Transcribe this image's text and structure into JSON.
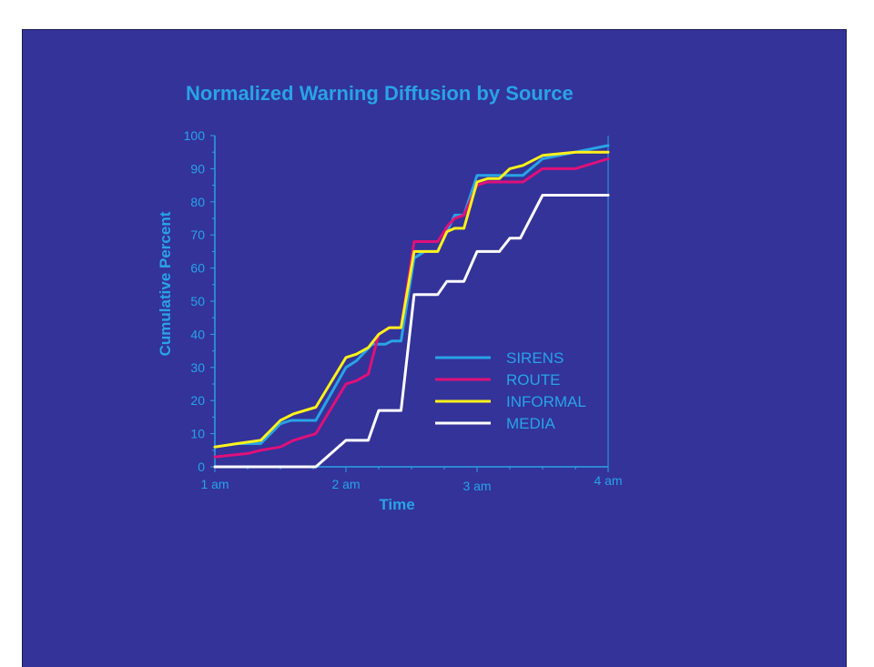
{
  "chart_data": {
    "type": "line",
    "title": "Normalized Warning Diffusion by Source",
    "xlabel": "Time",
    "ylabel": "Cumulative Percent",
    "xlim": [
      0,
      3
    ],
    "ylim": [
      0,
      100
    ],
    "x_ticks": [
      {
        "value": 0,
        "label": "1 am"
      },
      {
        "value": 1,
        "label": "2 am"
      },
      {
        "value": 2,
        "label": "3 am"
      },
      {
        "value": 3,
        "label": "4 am"
      }
    ],
    "y_ticks": [
      0,
      10,
      20,
      30,
      40,
      50,
      60,
      70,
      80,
      90,
      100
    ],
    "grid": false,
    "legend_position": "lower-right",
    "series": [
      {
        "name": "SIRENS",
        "color": "#29A3E6",
        "points": [
          [
            0,
            6
          ],
          [
            0.17,
            7
          ],
          [
            0.35,
            7
          ],
          [
            0.5,
            13
          ],
          [
            0.58,
            14
          ],
          [
            0.77,
            14
          ],
          [
            1.0,
            30
          ],
          [
            1.08,
            32
          ],
          [
            1.2,
            37
          ],
          [
            1.3,
            37
          ],
          [
            1.35,
            38
          ],
          [
            1.42,
            38
          ],
          [
            1.52,
            63
          ],
          [
            1.6,
            65
          ],
          [
            1.7,
            65
          ],
          [
            1.77,
            71
          ],
          [
            1.83,
            76
          ],
          [
            1.9,
            76
          ],
          [
            2.0,
            88
          ],
          [
            2.08,
            88
          ],
          [
            2.17,
            88
          ],
          [
            2.25,
            88
          ],
          [
            2.35,
            88
          ],
          [
            2.5,
            93
          ],
          [
            2.75,
            95
          ],
          [
            3.0,
            97
          ]
        ]
      },
      {
        "name": "ROUTE",
        "color": "#E0107A",
        "points": [
          [
            0,
            3
          ],
          [
            0.25,
            4
          ],
          [
            0.35,
            5
          ],
          [
            0.5,
            6
          ],
          [
            0.6,
            8
          ],
          [
            0.77,
            10
          ],
          [
            1.0,
            25
          ],
          [
            1.08,
            26
          ],
          [
            1.17,
            28
          ],
          [
            1.25,
            40
          ],
          [
            1.33,
            42
          ],
          [
            1.42,
            42
          ],
          [
            1.52,
            68
          ],
          [
            1.6,
            68
          ],
          [
            1.7,
            68
          ],
          [
            1.78,
            73
          ],
          [
            1.83,
            75
          ],
          [
            1.9,
            76
          ],
          [
            2.0,
            85
          ],
          [
            2.08,
            86
          ],
          [
            2.17,
            86
          ],
          [
            2.25,
            86
          ],
          [
            2.35,
            86
          ],
          [
            2.5,
            90
          ],
          [
            2.75,
            90
          ],
          [
            3.0,
            93
          ]
        ]
      },
      {
        "name": "INFORMAL",
        "color": "#FFF21A",
        "points": [
          [
            0,
            6
          ],
          [
            0.17,
            7
          ],
          [
            0.35,
            8
          ],
          [
            0.5,
            14
          ],
          [
            0.6,
            16
          ],
          [
            0.77,
            18
          ],
          [
            1.0,
            33
          ],
          [
            1.08,
            34
          ],
          [
            1.17,
            36
          ],
          [
            1.25,
            40
          ],
          [
            1.33,
            42
          ],
          [
            1.42,
            42
          ],
          [
            1.52,
            65
          ],
          [
            1.6,
            65
          ],
          [
            1.7,
            65
          ],
          [
            1.77,
            71
          ],
          [
            1.83,
            72
          ],
          [
            1.9,
            72
          ],
          [
            2.0,
            86
          ],
          [
            2.08,
            87
          ],
          [
            2.17,
            87
          ],
          [
            2.25,
            90
          ],
          [
            2.35,
            91
          ],
          [
            2.5,
            94
          ],
          [
            2.75,
            95
          ],
          [
            3.0,
            95
          ]
        ]
      },
      {
        "name": "MEDIA",
        "color": "#FFFFFF",
        "points": [
          [
            0,
            0
          ],
          [
            0.77,
            0
          ],
          [
            1.0,
            8
          ],
          [
            1.17,
            8
          ],
          [
            1.25,
            17
          ],
          [
            1.33,
            17
          ],
          [
            1.42,
            17
          ],
          [
            1.52,
            52
          ],
          [
            1.6,
            52
          ],
          [
            1.7,
            52
          ],
          [
            1.77,
            56
          ],
          [
            1.83,
            56
          ],
          [
            1.9,
            56
          ],
          [
            2.0,
            65
          ],
          [
            2.08,
            65
          ],
          [
            2.17,
            65
          ],
          [
            2.25,
            69
          ],
          [
            2.33,
            69
          ],
          [
            2.5,
            82
          ],
          [
            2.75,
            82
          ],
          [
            3.0,
            82
          ]
        ]
      }
    ]
  }
}
